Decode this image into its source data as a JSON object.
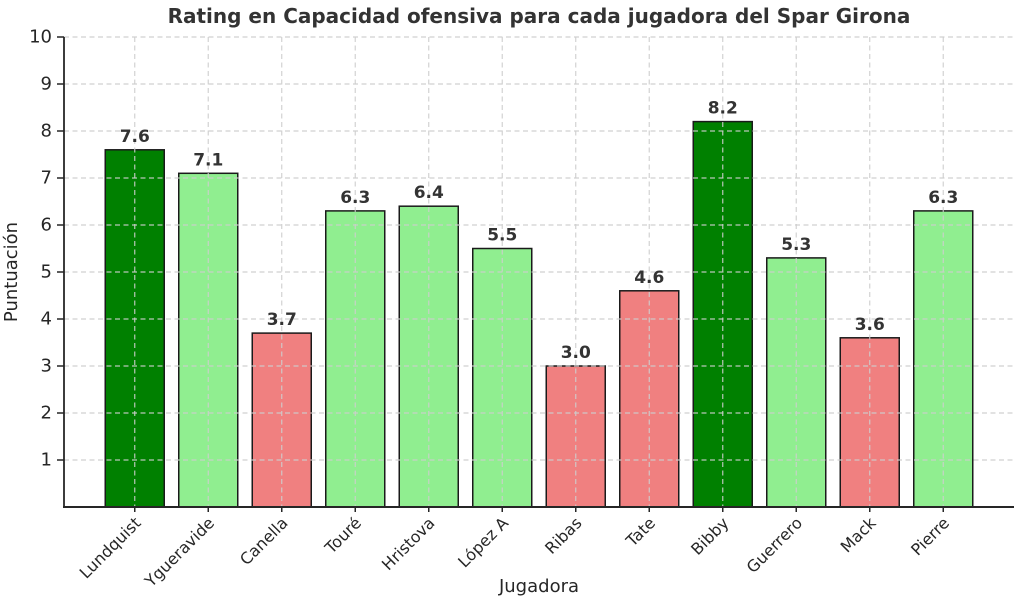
{
  "chart_data": {
    "type": "bar",
    "title": "Rating en Capacidad ofensiva para cada jugadora del Spar Girona",
    "xlabel": "Jugadora",
    "ylabel": "Puntuación",
    "categories": [
      "Lundquist",
      "Ygueravide",
      "Canella",
      "Touré",
      "Hristova",
      "López A",
      "Ribas",
      "Tate",
      "Bibby",
      "Guerrero",
      "Mack",
      "Pierre"
    ],
    "values": [
      7.6,
      7.1,
      3.7,
      6.3,
      6.4,
      5.5,
      3.0,
      4.6,
      8.2,
      5.3,
      3.6,
      6.3
    ],
    "bar_labels": [
      "7.6",
      "7.1",
      "3.7",
      "6.3",
      "6.4",
      "5.5",
      "3.0",
      "4.6",
      "8.2",
      "5.3",
      "3.6",
      "6.3"
    ],
    "bar_colors": [
      "#008000",
      "#90EE90",
      "#F08080",
      "#90EE90",
      "#90EE90",
      "#90EE90",
      "#F08080",
      "#F08080",
      "#008000",
      "#90EE90",
      "#F08080",
      "#90EE90"
    ],
    "color_meaning": {
      "high": "#008000",
      "medium": "#90EE90",
      "low": "#F08080"
    },
    "edge_color": "#1a1a1a",
    "ylim": [
      0,
      10
    ],
    "yticks": [
      1,
      2,
      3,
      4,
      5,
      6,
      7,
      8,
      9,
      10
    ],
    "grid": {
      "show": true,
      "linestyle": "dashed",
      "color": "#cdcdcd"
    },
    "legend": {
      "visible": false
    },
    "background": "#ffffff",
    "text_colors": {
      "title": "#333333",
      "ticks": "#262626",
      "value_labels": "#333333"
    }
  }
}
